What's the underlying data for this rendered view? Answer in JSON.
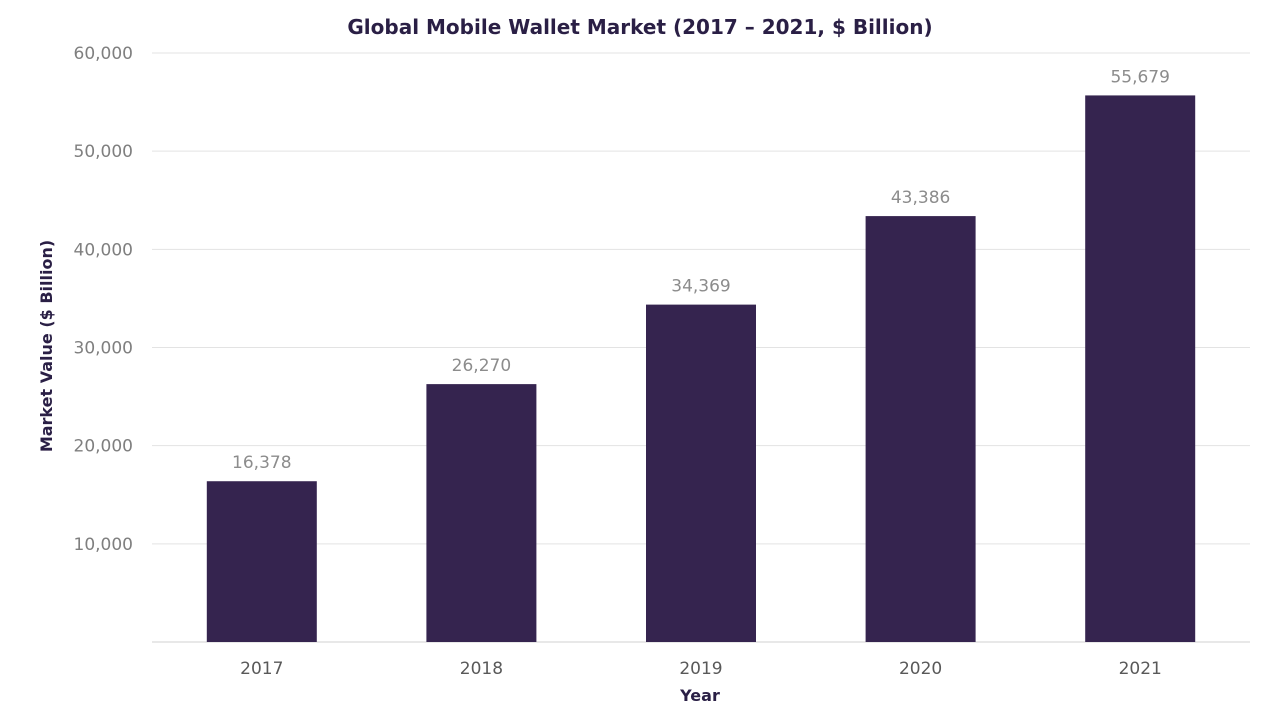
{
  "chart_data": {
    "type": "bar",
    "title": "Global Mobile Wallet Market (2017 – 2021, $ Billion)",
    "xlabel": "Year",
    "ylabel": "Market Value ($ Billion)",
    "categories": [
      "2017",
      "2018",
      "2019",
      "2020",
      "2021"
    ],
    "values": [
      16378,
      26270,
      34369,
      43386,
      55679
    ],
    "data_labels": [
      "16,378",
      "26,270",
      "34,369",
      "43,386",
      "55,679"
    ],
    "ylim": [
      0,
      60000
    ],
    "yticks": [
      10000,
      20000,
      30000,
      40000,
      50000,
      60000
    ],
    "ytick_labels": [
      "10,000",
      "20,000",
      "30,000",
      "40,000",
      "50,000",
      "60,000"
    ],
    "grid": true,
    "bar_color": "#35244f"
  }
}
